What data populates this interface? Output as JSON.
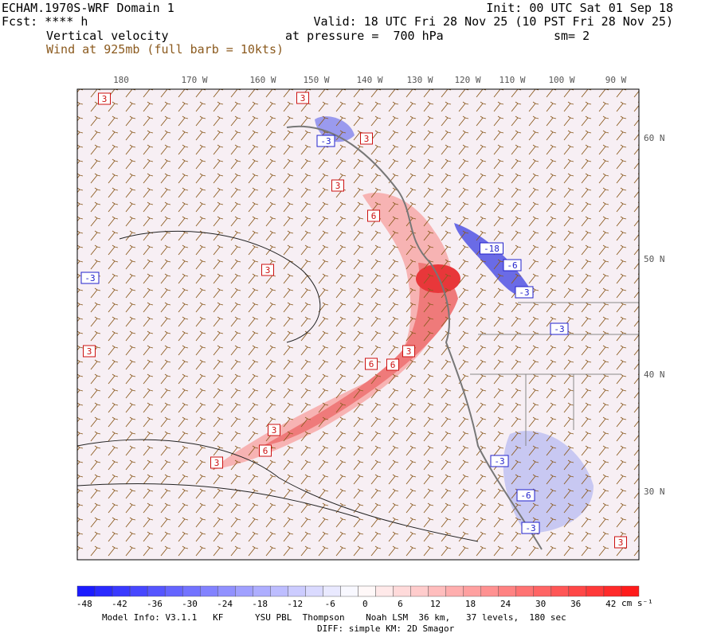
{
  "header": {
    "model": "ECHAM.1970S-WRF Domain 1",
    "forecast": "Fcst: **** h",
    "field": "Vertical velocity",
    "wind": "Wind at 925mb (full barb = 10kts)",
    "init": "Init: 00 UTC Sat 01 Sep 18",
    "valid": "Valid: 18 UTC Fri 28 Nov 25 (10 PST Fri 28 Nov 25)",
    "pressure": "at pressure =  700 hPa",
    "smoothing": "sm= 2"
  },
  "map": {
    "longitude_labels": [
      "180",
      "170 W",
      "160 W",
      "150 W",
      "140 W",
      "130 W",
      "120 W",
      "110 W",
      "100 W",
      "90 W"
    ],
    "latitude_labels": [
      "60 N",
      "50 N",
      "40 N",
      "30 N"
    ],
    "contour_labels": [
      "3",
      "3",
      "-3",
      "3",
      "3",
      "6",
      "3",
      "-3",
      "-18",
      "-6",
      "-3",
      "-3",
      "3",
      "6",
      "6",
      "3",
      "3",
      "6",
      "3",
      "-3",
      "-6",
      "-3",
      "3"
    ]
  },
  "colorbar": {
    "ticks": [
      -48,
      -42,
      -36,
      -30,
      -24,
      -18,
      -12,
      -6,
      0,
      6,
      12,
      18,
      24,
      30,
      36,
      42
    ],
    "unit": "cm s⁻¹"
  },
  "footer": {
    "model_info": "Model Info: V3.1.1   KF      YSU PBL  Thompson    Noah LSM  36 km,   37 levels,  180 sec",
    "diffusion": "DIFF: simple KM: 2D Smagor"
  }
}
